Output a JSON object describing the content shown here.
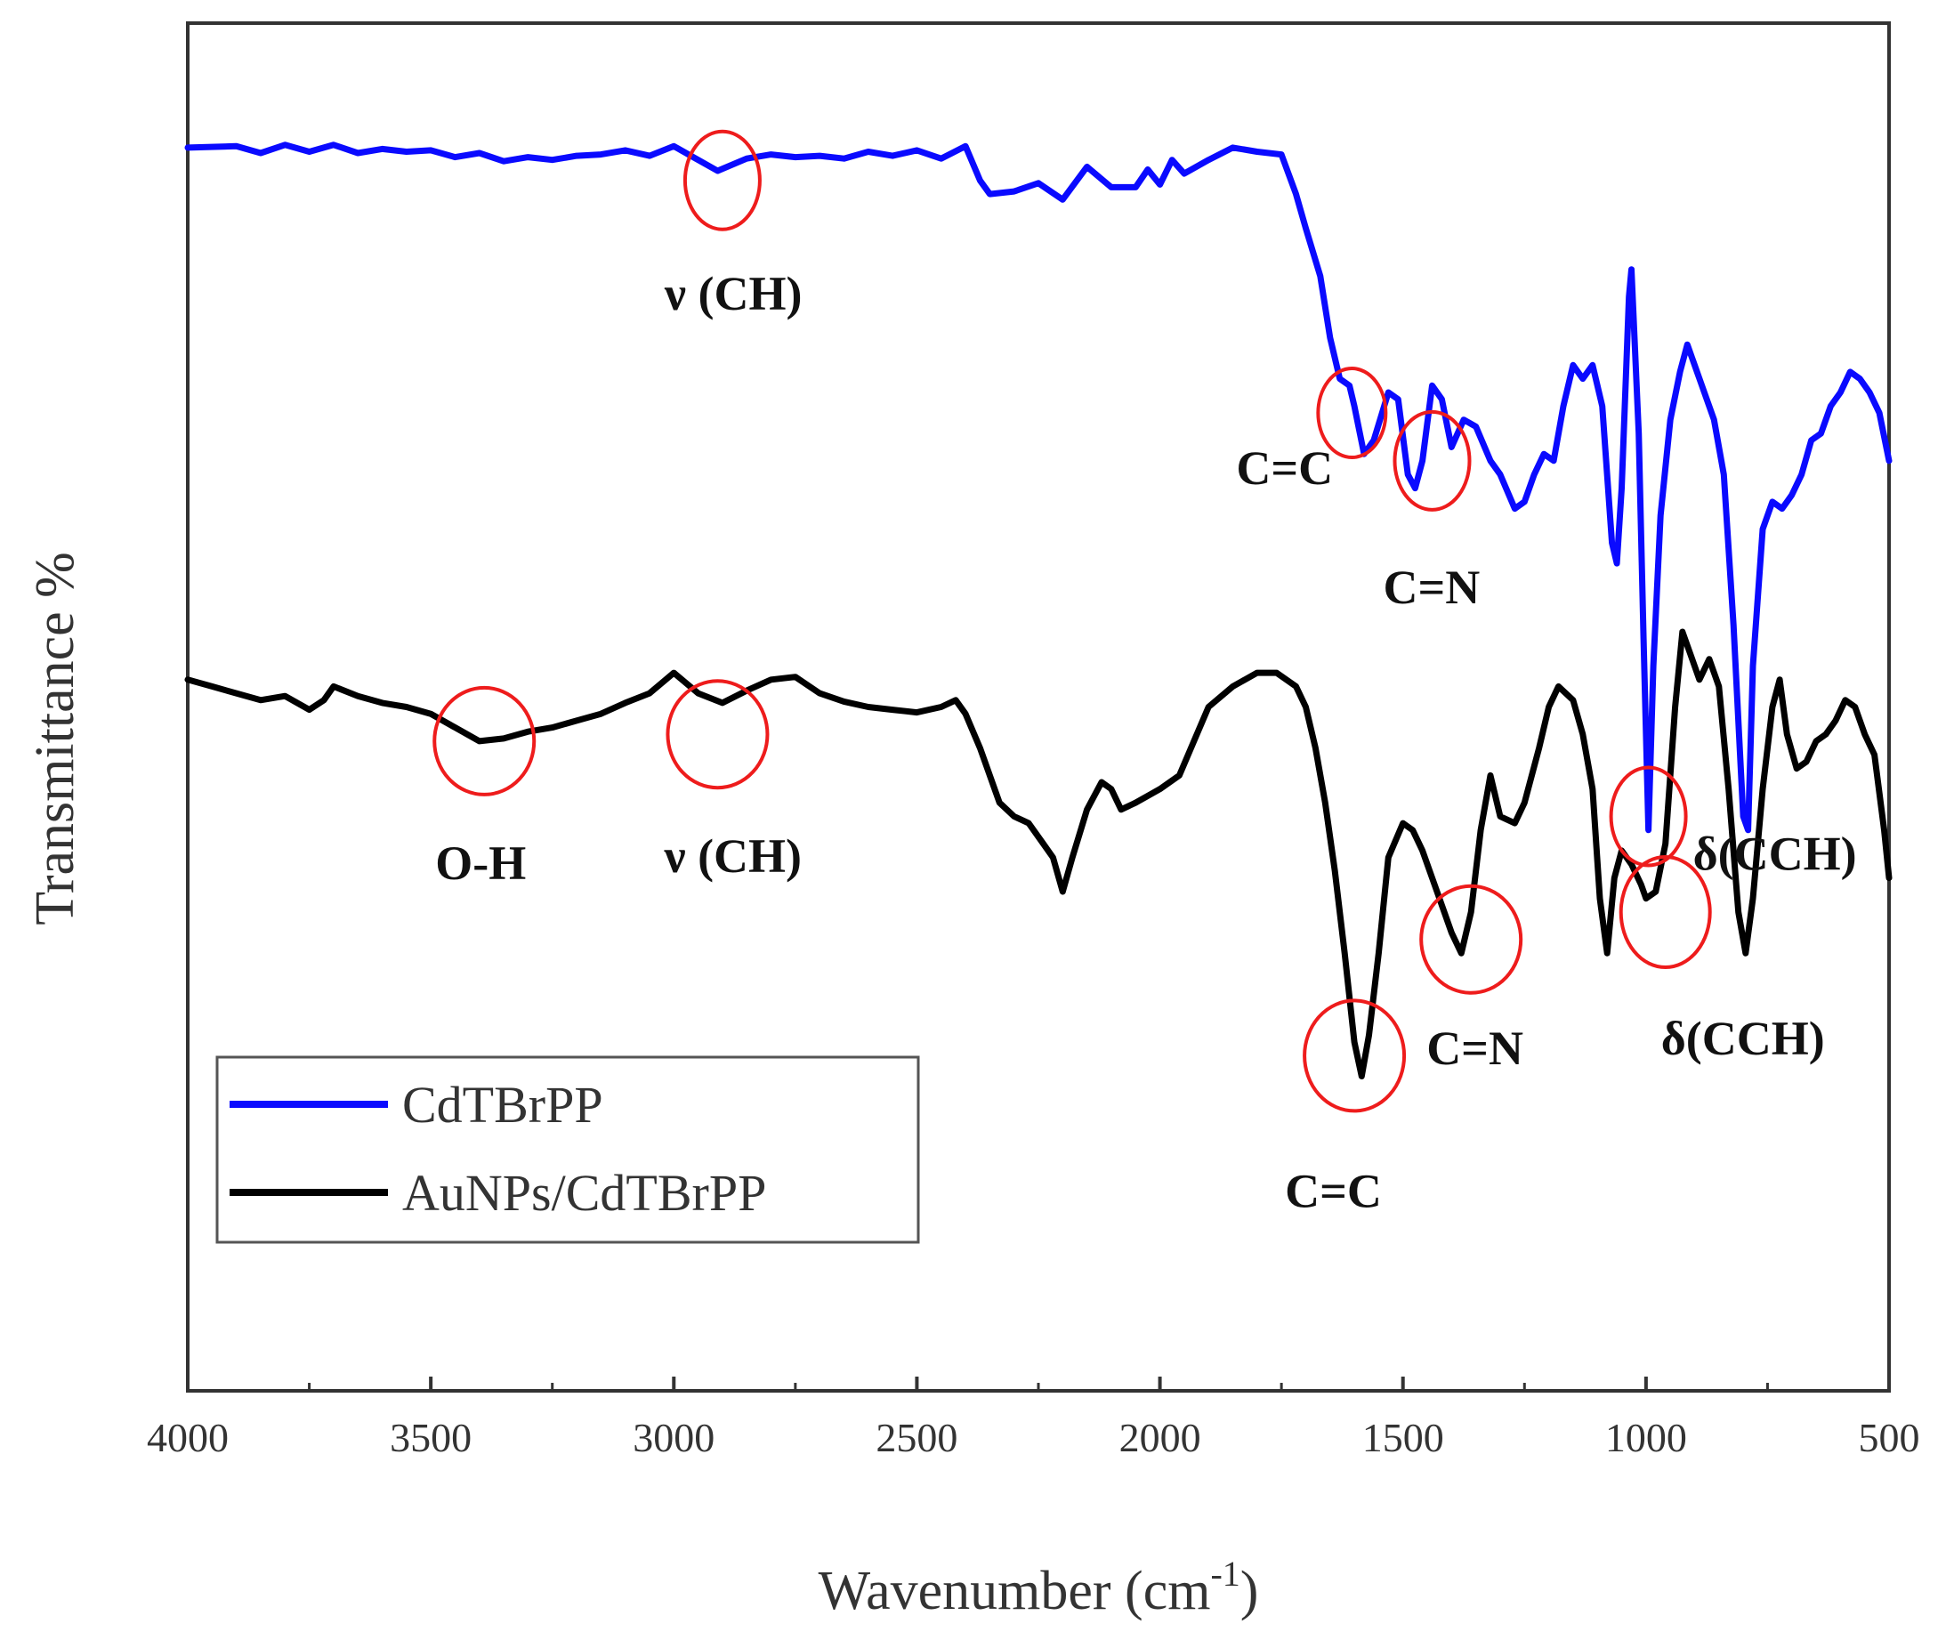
{
  "chart_data": {
    "type": "line",
    "title": "",
    "xlabel_main": "Wavenumber (cm",
    "xlabel_sup": "-1",
    "xlabel_end": ")",
    "ylabel": "Transmittance %",
    "xlim": [
      4000,
      500
    ],
    "ylim": [
      0,
      100
    ],
    "xticks": [
      4000,
      3500,
      3000,
      2500,
      2000,
      1500,
      1000,
      500
    ],
    "y_tick_labels": false,
    "grid": false,
    "legend_position": "lower-left",
    "series": [
      {
        "name": "CdTBrPP",
        "color": "#0a0aff",
        "points": [
          [
            4000,
            90.9
          ],
          [
            3900,
            91.0
          ],
          [
            3850,
            90.5
          ],
          [
            3800,
            91.1
          ],
          [
            3750,
            90.6
          ],
          [
            3700,
            91.1
          ],
          [
            3650,
            90.5
          ],
          [
            3600,
            90.8
          ],
          [
            3550,
            90.6
          ],
          [
            3500,
            90.7
          ],
          [
            3450,
            90.2
          ],
          [
            3400,
            90.5
          ],
          [
            3350,
            89.9
          ],
          [
            3300,
            90.2
          ],
          [
            3250,
            90.0
          ],
          [
            3200,
            90.3
          ],
          [
            3150,
            90.4
          ],
          [
            3100,
            90.7
          ],
          [
            3050,
            90.3
          ],
          [
            3000,
            91.0
          ],
          [
            2950,
            90.0
          ],
          [
            2910,
            89.2
          ],
          [
            2850,
            90.1
          ],
          [
            2800,
            90.4
          ],
          [
            2750,
            90.2
          ],
          [
            2700,
            90.3
          ],
          [
            2650,
            90.1
          ],
          [
            2600,
            90.6
          ],
          [
            2550,
            90.3
          ],
          [
            2500,
            90.7
          ],
          [
            2450,
            90.1
          ],
          [
            2400,
            91.0
          ],
          [
            2370,
            88.5
          ],
          [
            2350,
            87.5
          ],
          [
            2300,
            87.7
          ],
          [
            2250,
            88.3
          ],
          [
            2200,
            87.1
          ],
          [
            2150,
            89.5
          ],
          [
            2100,
            88.0
          ],
          [
            2050,
            88.0
          ],
          [
            2025,
            89.3
          ],
          [
            2000,
            88.2
          ],
          [
            1975,
            90.0
          ],
          [
            1950,
            89.0
          ],
          [
            1900,
            90.0
          ],
          [
            1850,
            90.9
          ],
          [
            1800,
            90.6
          ],
          [
            1750,
            90.4
          ],
          [
            1720,
            87.5
          ],
          [
            1700,
            85.0
          ],
          [
            1670,
            81.5
          ],
          [
            1650,
            77.0
          ],
          [
            1630,
            74.0
          ],
          [
            1610,
            73.5
          ],
          [
            1600,
            72.0
          ],
          [
            1580,
            68.5
          ],
          [
            1560,
            69.5
          ],
          [
            1530,
            73.0
          ],
          [
            1510,
            72.5
          ],
          [
            1490,
            67.0
          ],
          [
            1475,
            66.0
          ],
          [
            1460,
            68.0
          ],
          [
            1440,
            73.5
          ],
          [
            1420,
            72.5
          ],
          [
            1400,
            69.0
          ],
          [
            1375,
            71.0
          ],
          [
            1350,
            70.5
          ],
          [
            1320,
            68.0
          ],
          [
            1300,
            67.0
          ],
          [
            1270,
            64.5
          ],
          [
            1250,
            65.0
          ],
          [
            1230,
            67.0
          ],
          [
            1210,
            68.5
          ],
          [
            1190,
            68.0
          ],
          [
            1170,
            72.0
          ],
          [
            1150,
            75.0
          ],
          [
            1130,
            74.0
          ],
          [
            1110,
            75.0
          ],
          [
            1090,
            72.0
          ],
          [
            1070,
            62.0
          ],
          [
            1060,
            60.5
          ],
          [
            1050,
            66.0
          ],
          [
            1035,
            80.0
          ],
          [
            1030,
            82.0
          ],
          [
            1015,
            70.0
          ],
          [
            1005,
            55.0
          ],
          [
            995,
            41.0
          ],
          [
            985,
            53.0
          ],
          [
            970,
            64.0
          ],
          [
            950,
            71.0
          ],
          [
            930,
            74.5
          ],
          [
            915,
            76.5
          ],
          [
            900,
            75.0
          ],
          [
            880,
            73.0
          ],
          [
            860,
            71.0
          ],
          [
            840,
            67.0
          ],
          [
            820,
            56.0
          ],
          [
            800,
            42.0
          ],
          [
            790,
            41.0
          ],
          [
            780,
            53.0
          ],
          [
            760,
            63.0
          ],
          [
            740,
            65.0
          ],
          [
            720,
            64.5
          ],
          [
            700,
            65.5
          ],
          [
            680,
            67.0
          ],
          [
            660,
            69.5
          ],
          [
            640,
            70.0
          ],
          [
            620,
            72.0
          ],
          [
            600,
            73.0
          ],
          [
            580,
            74.5
          ],
          [
            560,
            74.0
          ],
          [
            540,
            73.0
          ],
          [
            520,
            71.5
          ],
          [
            500,
            68.0
          ]
        ]
      },
      {
        "name": "AuNPs/CdTBrPP",
        "color": "#000000",
        "points": [
          [
            4000,
            52.0
          ],
          [
            3950,
            51.5
          ],
          [
            3900,
            51.0
          ],
          [
            3850,
            50.5
          ],
          [
            3800,
            50.8
          ],
          [
            3750,
            49.8
          ],
          [
            3720,
            50.5
          ],
          [
            3700,
            51.5
          ],
          [
            3650,
            50.8
          ],
          [
            3600,
            50.3
          ],
          [
            3550,
            50.0
          ],
          [
            3500,
            49.5
          ],
          [
            3450,
            48.5
          ],
          [
            3400,
            47.5
          ],
          [
            3350,
            47.7
          ],
          [
            3300,
            48.2
          ],
          [
            3250,
            48.5
          ],
          [
            3200,
            49.0
          ],
          [
            3150,
            49.5
          ],
          [
            3100,
            50.3
          ],
          [
            3050,
            51.0
          ],
          [
            3000,
            52.5
          ],
          [
            2950,
            51.0
          ],
          [
            2900,
            50.3
          ],
          [
            2850,
            51.2
          ],
          [
            2800,
            52.0
          ],
          [
            2750,
            52.2
          ],
          [
            2700,
            51.0
          ],
          [
            2650,
            50.4
          ],
          [
            2600,
            50.0
          ],
          [
            2550,
            49.8
          ],
          [
            2500,
            49.6
          ],
          [
            2450,
            50.0
          ],
          [
            2420,
            50.5
          ],
          [
            2400,
            49.5
          ],
          [
            2370,
            47.0
          ],
          [
            2330,
            43.0
          ],
          [
            2300,
            42.0
          ],
          [
            2270,
            41.5
          ],
          [
            2240,
            40.0
          ],
          [
            2220,
            39.0
          ],
          [
            2200,
            36.5
          ],
          [
            2180,
            39.0
          ],
          [
            2150,
            42.5
          ],
          [
            2120,
            44.5
          ],
          [
            2100,
            44.0
          ],
          [
            2080,
            42.5
          ],
          [
            2050,
            43.0
          ],
          [
            2000,
            44.0
          ],
          [
            1960,
            45.0
          ],
          [
            1930,
            47.5
          ],
          [
            1900,
            50.0
          ],
          [
            1850,
            51.5
          ],
          [
            1800,
            52.5
          ],
          [
            1760,
            52.5
          ],
          [
            1720,
            51.5
          ],
          [
            1700,
            50.0
          ],
          [
            1680,
            47.0
          ],
          [
            1660,
            43.0
          ],
          [
            1640,
            38.0
          ],
          [
            1620,
            32.0
          ],
          [
            1600,
            25.5
          ],
          [
            1585,
            23.0
          ],
          [
            1570,
            26.0
          ],
          [
            1550,
            32.0
          ],
          [
            1530,
            39.0
          ],
          [
            1500,
            41.5
          ],
          [
            1480,
            41.0
          ],
          [
            1460,
            39.5
          ],
          [
            1430,
            36.5
          ],
          [
            1400,
            33.5
          ],
          [
            1380,
            32.0
          ],
          [
            1360,
            35.0
          ],
          [
            1340,
            41.0
          ],
          [
            1320,
            45.0
          ],
          [
            1300,
            42.0
          ],
          [
            1270,
            41.5
          ],
          [
            1250,
            43.0
          ],
          [
            1220,
            47.0
          ],
          [
            1200,
            50.0
          ],
          [
            1180,
            51.5
          ],
          [
            1150,
            50.5
          ],
          [
            1130,
            48.0
          ],
          [
            1110,
            44.0
          ],
          [
            1095,
            36.0
          ],
          [
            1080,
            32.0
          ],
          [
            1065,
            37.5
          ],
          [
            1050,
            39.5
          ],
          [
            1030,
            38.5
          ],
          [
            1010,
            37.0
          ],
          [
            1000,
            36.0
          ],
          [
            980,
            36.5
          ],
          [
            960,
            40.0
          ],
          [
            940,
            50.0
          ],
          [
            925,
            55.5
          ],
          [
            910,
            54.0
          ],
          [
            890,
            52.0
          ],
          [
            870,
            53.5
          ],
          [
            850,
            51.5
          ],
          [
            830,
            44.0
          ],
          [
            810,
            35.0
          ],
          [
            795,
            32.0
          ],
          [
            780,
            36.0
          ],
          [
            760,
            44.0
          ],
          [
            740,
            50.0
          ],
          [
            725,
            52.0
          ],
          [
            710,
            48.0
          ],
          [
            690,
            45.5
          ],
          [
            670,
            46.0
          ],
          [
            650,
            47.5
          ],
          [
            630,
            48.0
          ],
          [
            610,
            49.0
          ],
          [
            590,
            50.5
          ],
          [
            570,
            50.0
          ],
          [
            550,
            48.0
          ],
          [
            530,
            46.5
          ],
          [
            510,
            41.0
          ],
          [
            500,
            37.5
          ]
        ]
      }
    ],
    "annotations": [
      {
        "label": "ν (CH)",
        "circle": [
          2900,
          88.5
        ]
      },
      {
        "label": "C=C",
        "circle": [
          1605,
          71.5
        ]
      },
      {
        "label": "C=N",
        "circle": [
          1440,
          68.0
        ]
      },
      {
        "label": "δ(CCH)",
        "circle": [
          995,
          42.0
        ]
      },
      {
        "label": "O-H",
        "circle": [
          3390,
          47.5
        ]
      },
      {
        "label": "ν (CH)",
        "circle": [
          2910,
          48.0
        ]
      },
      {
        "label": "C=C",
        "circle": [
          1600,
          24.5
        ]
      },
      {
        "label": "C=N",
        "circle": [
          1360,
          33.0
        ]
      },
      {
        "label": "δ(CCH)",
        "circle": [
          960,
          35.0
        ]
      }
    ]
  }
}
